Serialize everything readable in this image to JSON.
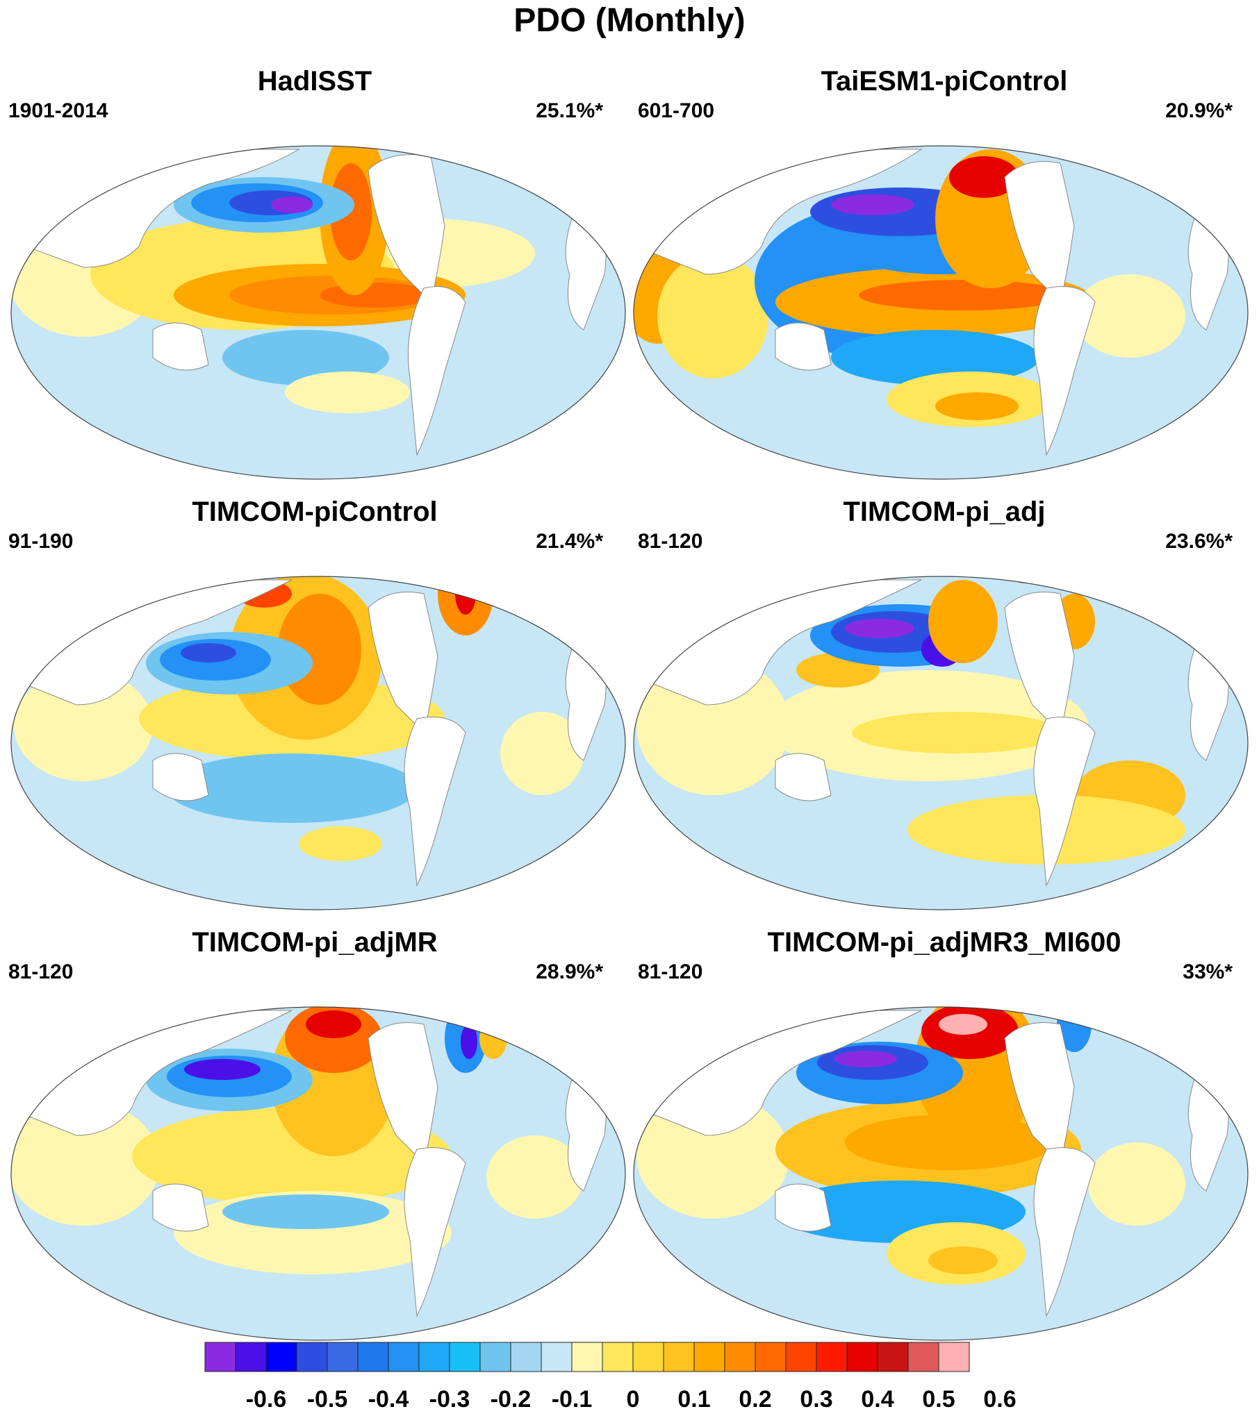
{
  "title": "PDO (Monthly)",
  "panels": [
    {
      "title": "HadISST",
      "period": "1901-2014",
      "percent": "25.1%*"
    },
    {
      "title": "TaiESM1-piControl",
      "period": "601-700",
      "percent": "20.9%*"
    },
    {
      "title": "TIMCOM-piControl",
      "period": "91-190",
      "percent": "21.4%*"
    },
    {
      "title": "TIMCOM-pi_adj",
      "period": "81-120",
      "percent": "23.6%*"
    },
    {
      "title": "TIMCOM-pi_adjMR",
      "period": "81-120",
      "percent": "28.9%*"
    },
    {
      "title": "TIMCOM-pi_adjMR3_MI600",
      "period": "81-120",
      "percent": "33%*"
    }
  ],
  "colorbar": {
    "colors": [
      "#8a2be2",
      "#4b0fe8",
      "#0000ff",
      "#2d4fe0",
      "#3a6ae6",
      "#1e78ee",
      "#2391f5",
      "#1fa8f5",
      "#18c0f8",
      "#6fc5f0",
      "#a3d6f2",
      "#c7e6f6",
      "#fff7b0",
      "#ffe65a",
      "#ffd83a",
      "#ffc21e",
      "#ffa800",
      "#ff8c00",
      "#ff6a00",
      "#ff4400",
      "#ff1a00",
      "#e60000",
      "#c81414",
      "#e05a5a",
      "#ffb0b0"
    ],
    "labels": [
      "-0.6",
      "-0.5",
      "-0.4",
      "-0.3",
      "-0.2",
      "-0.1",
      "0",
      "0.1",
      "0.2",
      "0.3",
      "0.4",
      "0.5",
      "0.6"
    ]
  }
}
